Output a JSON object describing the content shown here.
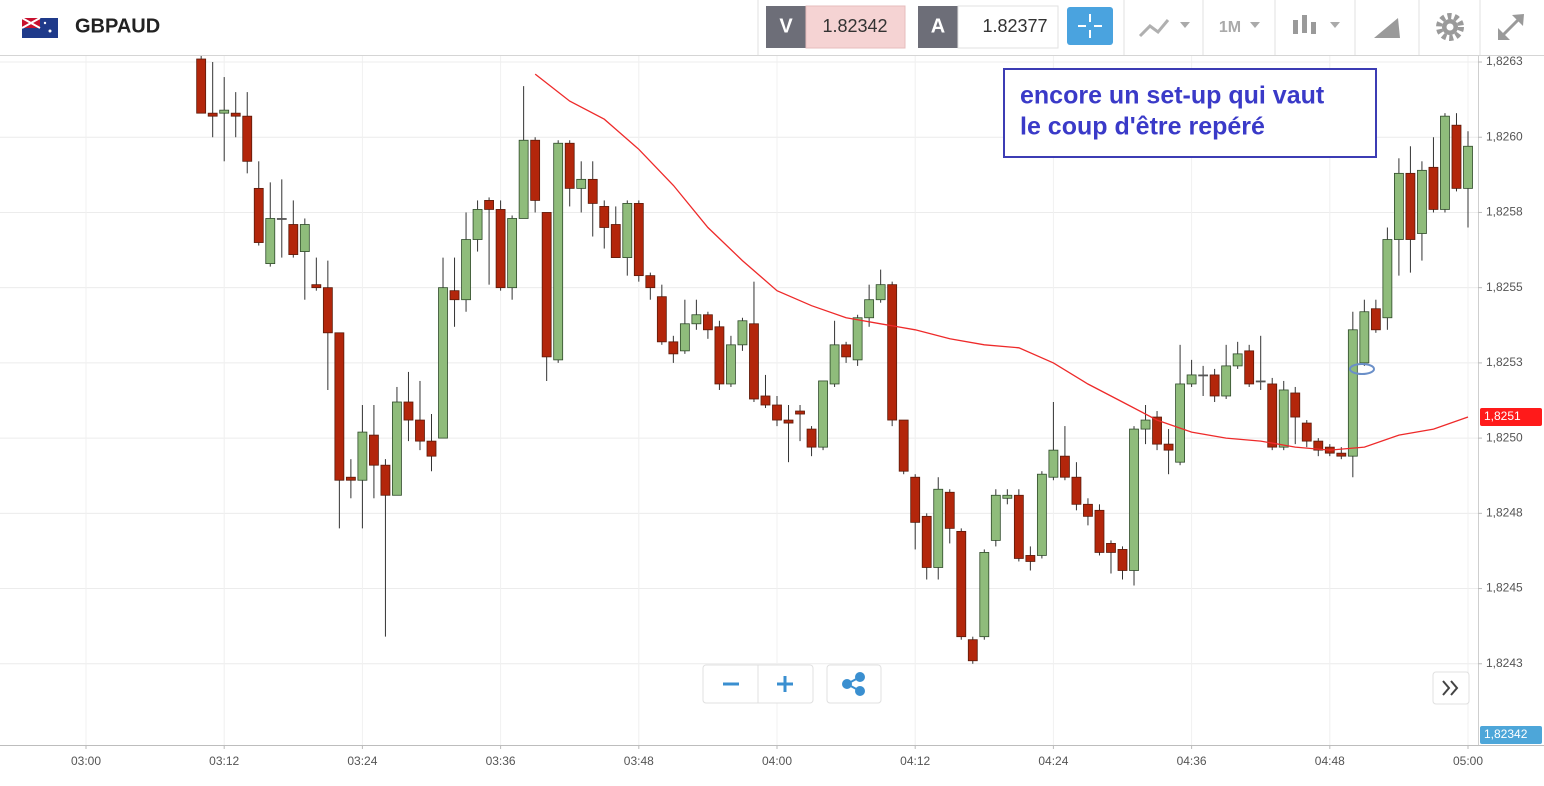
{
  "toolbar": {
    "symbol": "GBPAUD",
    "sell_label": "V",
    "sell_price": 1.82342,
    "buy_label": "A",
    "buy_price": 1.82377,
    "timeframe": "1M"
  },
  "chart_data": {
    "type": "candlestick",
    "annotation": [
      "encore un set-up qui vaut",
      "le coup d'être repéré"
    ],
    "x": [
      "03:10",
      "03:11",
      "03:12",
      "03:13",
      "03:14",
      "03:15",
      "03:16",
      "03:17",
      "03:18",
      "03:19",
      "03:20",
      "03:21",
      "03:22",
      "03:23",
      "03:24",
      "03:25",
      "03:26",
      "03:27",
      "03:28",
      "03:29",
      "03:30",
      "03:31",
      "03:32",
      "03:33",
      "03:34",
      "03:35",
      "03:36",
      "03:37",
      "03:38",
      "03:39",
      "03:40",
      "03:41",
      "03:42",
      "03:43",
      "03:44",
      "03:45",
      "03:46",
      "03:47",
      "03:48",
      "03:49",
      "03:50",
      "03:51",
      "03:52",
      "03:53",
      "03:54",
      "03:55",
      "03:56",
      "03:57",
      "03:58",
      "03:59",
      "04:00",
      "04:01",
      "04:02",
      "04:03",
      "04:04",
      "04:05",
      "04:06",
      "04:07",
      "04:08",
      "04:09",
      "04:10",
      "04:11",
      "04:12",
      "04:13",
      "04:14",
      "04:15",
      "04:16",
      "04:17",
      "04:18",
      "04:19",
      "04:20",
      "04:21",
      "04:22",
      "04:23",
      "04:24",
      "04:25",
      "04:26",
      "04:27",
      "04:28",
      "04:29",
      "04:30",
      "04:31",
      "04:32",
      "04:33",
      "04:34",
      "04:35",
      "04:36",
      "04:37",
      "04:38",
      "04:39",
      "04:40",
      "04:41",
      "04:42",
      "04:43",
      "04:44",
      "04:45",
      "04:46",
      "04:47",
      "04:48",
      "04:49",
      "04:50",
      "04:51",
      "04:52",
      "04:53",
      "04:54",
      "04:55",
      "04:56",
      "04:57",
      "04:58",
      "04:59",
      "05:00"
    ],
    "open": [
      1.82626,
      1.82608,
      1.82608,
      1.82608,
      1.82607,
      1.82583,
      1.82558,
      1.82573,
      1.82571,
      1.82562,
      1.82551,
      1.8255,
      1.82535,
      1.82487,
      1.82486,
      1.82501,
      1.82491,
      1.82481,
      1.82512,
      1.82506,
      1.82499,
      1.825,
      1.82549,
      1.82546,
      1.82566,
      1.82579,
      1.82576,
      1.8255,
      1.82573,
      1.82599,
      1.82575,
      1.82526,
      1.82598,
      1.82583,
      1.82586,
      1.82577,
      1.82571,
      1.8256,
      1.82578,
      1.82554,
      1.82547,
      1.82532,
      1.82529,
      1.82538,
      1.82541,
      1.82537,
      1.82518,
      1.82531,
      1.82538,
      1.82514,
      1.82511,
      1.82506,
      1.82509,
      1.82503,
      1.82497,
      1.82518,
      1.82531,
      1.82526,
      1.8254,
      1.82546,
      1.82551,
      1.82506,
      1.82487,
      1.82474,
      1.82457,
      1.82482,
      1.82469,
      1.82433,
      1.82434,
      1.82466,
      1.8248,
      1.82481,
      1.82461,
      1.82461,
      1.82487,
      1.82494,
      1.82487,
      1.82478,
      1.82476,
      1.82465,
      1.82463,
      1.82456,
      1.82503,
      1.82507,
      1.82498,
      1.82492,
      1.82518,
      1.82521,
      1.82521,
      1.82514,
      1.82524,
      1.82529,
      1.82519,
      1.82518,
      1.82497,
      1.82515,
      1.82505,
      1.82499,
      1.82497,
      1.82495,
      1.82494,
      1.82525,
      1.82543,
      1.8254,
      1.82566,
      1.82588,
      1.82568,
      1.8259,
      1.82576,
      1.82604,
      1.82583
    ],
    "high": [
      1.82628,
      1.82625,
      1.8262,
      1.82615,
      1.82615,
      1.82592,
      1.82585,
      1.82586,
      1.82579,
      1.82573,
      1.8256,
      1.82559,
      1.82535,
      1.82493,
      1.82511,
      1.82511,
      1.82493,
      1.82517,
      1.82522,
      1.82519,
      1.82508,
      1.8256,
      1.8256,
      1.82575,
      1.82579,
      1.8258,
      1.82579,
      1.82574,
      1.82617,
      1.826,
      1.82575,
      1.82599,
      1.82599,
      1.82592,
      1.82592,
      1.82579,
      1.82577,
      1.82579,
      1.82579,
      1.82555,
      1.82551,
      1.82534,
      1.82546,
      1.82546,
      1.82542,
      1.82539,
      1.82534,
      1.8254,
      1.82552,
      1.82521,
      1.82514,
      1.82511,
      1.82511,
      1.82504,
      1.82519,
      1.82539,
      1.82532,
      1.82541,
      1.82551,
      1.82556,
      1.82552,
      1.82506,
      1.82488,
      1.82475,
      1.82487,
      1.82483,
      1.8247,
      1.82434,
      1.82463,
      1.82483,
      1.82483,
      1.82483,
      1.82464,
      1.82489,
      1.82512,
      1.82504,
      1.82492,
      1.8248,
      1.82478,
      1.82466,
      1.82464,
      1.82504,
      1.82511,
      1.82509,
      1.82503,
      1.82531,
      1.82526,
      1.82524,
      1.82523,
      1.82531,
      1.82532,
      1.82531,
      1.82534,
      1.8252,
      1.82519,
      1.82517,
      1.82506,
      1.825,
      1.82498,
      1.82497,
      1.82542,
      1.82546,
      1.82546,
      1.8257,
      1.82593,
      1.82597,
      1.82592,
      1.826,
      1.82608,
      1.82608,
      1.82602
    ],
    "low": [
      1.82608,
      1.826,
      1.82592,
      1.826,
      1.82588,
      1.82564,
      1.82557,
      1.8256,
      1.8256,
      1.82546,
      1.82549,
      1.82516,
      1.8247,
      1.8248,
      1.8247,
      1.8248,
      1.82434,
      1.82481,
      1.82499,
      1.82496,
      1.82489,
      1.825,
      1.82537,
      1.82542,
      1.82562,
      1.82551,
      1.82549,
      1.82546,
      1.82573,
      1.82575,
      1.82519,
      1.82525,
      1.82577,
      1.82575,
      1.82567,
      1.82563,
      1.8256,
      1.82554,
      1.82552,
      1.82546,
      1.82531,
      1.82525,
      1.82528,
      1.82536,
      1.82533,
      1.82516,
      1.82517,
      1.82529,
      1.82512,
      1.8251,
      1.82504,
      1.82492,
      1.82499,
      1.82494,
      1.82496,
      1.82517,
      1.82525,
      1.82524,
      1.82537,
      1.82545,
      1.82504,
      1.82488,
      1.82463,
      1.82453,
      1.82453,
      1.82465,
      1.82433,
      1.82425,
      1.82433,
      1.82464,
      1.82478,
      1.82459,
      1.82456,
      1.8246,
      1.82486,
      1.82486,
      1.82476,
      1.82471,
      1.82461,
      1.82455,
      1.82453,
      1.82451,
      1.82498,
      1.82496,
      1.82488,
      1.82491,
      1.82517,
      1.82514,
      1.82512,
      1.82513,
      1.82523,
      1.82517,
      1.82516,
      1.82496,
      1.82496,
      1.82498,
      1.82497,
      1.82494,
      1.82494,
      1.82493,
      1.82487,
      1.82524,
      1.82535,
      1.82536,
      1.82554,
      1.82555,
      1.82559,
      1.82575,
      1.82575,
      1.82582,
      1.8257
    ],
    "close": [
      1.82608,
      1.82607,
      1.82609,
      1.82607,
      1.82592,
      1.82565,
      1.82573,
      1.82573,
      1.82561,
      1.82571,
      1.8255,
      1.82535,
      1.82486,
      1.82486,
      1.82502,
      1.82491,
      1.82481,
      1.82512,
      1.82506,
      1.82499,
      1.82494,
      1.8255,
      1.82546,
      1.82566,
      1.82576,
      1.82576,
      1.8255,
      1.82573,
      1.82599,
      1.82579,
      1.82527,
      1.82598,
      1.82583,
      1.82586,
      1.82578,
      1.8257,
      1.8256,
      1.82578,
      1.82554,
      1.8255,
      1.82532,
      1.82528,
      1.82538,
      1.82541,
      1.82536,
      1.82518,
      1.82531,
      1.82539,
      1.82513,
      1.82511,
      1.82506,
      1.82505,
      1.82508,
      1.82497,
      1.82519,
      1.82531,
      1.82527,
      1.8254,
      1.82546,
      1.82551,
      1.82506,
      1.82489,
      1.82472,
      1.82457,
      1.82483,
      1.8247,
      1.82434,
      1.82426,
      1.82462,
      1.82481,
      1.82481,
      1.8246,
      1.82459,
      1.82488,
      1.82496,
      1.82487,
      1.82478,
      1.82474,
      1.82462,
      1.82462,
      1.82456,
      1.82503,
      1.82506,
      1.82498,
      1.82496,
      1.82518,
      1.82521,
      1.82521,
      1.82514,
      1.82524,
      1.82528,
      1.82518,
      1.82519,
      1.82497,
      1.82516,
      1.82507,
      1.82499,
      1.82496,
      1.82495,
      1.82494,
      1.82536,
      1.82542,
      1.82536,
      1.82566,
      1.82588,
      1.82566,
      1.82589,
      1.82576,
      1.82607,
      1.82583,
      1.82597
    ],
    "up_color": "#8fbc7b",
    "down_color": "#b3260b",
    "doji_color": "#555555",
    "ma": {
      "color": "#ee2a2a",
      "x": [
        "03:39",
        "03:42",
        "03:45",
        "03:48",
        "03:51",
        "03:54",
        "03:57",
        "04:00",
        "04:03",
        "04:06",
        "04:09",
        "04:12",
        "04:15",
        "04:18",
        "04:21",
        "04:24",
        "04:27",
        "04:30",
        "04:33",
        "04:36",
        "04:39",
        "04:42",
        "04:45",
        "04:48",
        "04:51",
        "04:54",
        "04:57",
        "05:00"
      ],
      "values": [
        1.82621,
        1.82612,
        1.82606,
        1.82596,
        1.82584,
        1.8257,
        1.82559,
        1.82549,
        1.82544,
        1.8254,
        1.82538,
        1.82536,
        1.82533,
        1.82531,
        1.8253,
        1.82525,
        1.82518,
        1.82512,
        1.82506,
        1.82502,
        1.825,
        1.82499,
        1.82497,
        1.82496,
        1.82497,
        1.82501,
        1.82503,
        1.82507
      ]
    },
    "ylim": [
      1.82398,
      1.82627
    ],
    "yticks": [
      {
        "value": 1.82625,
        "label": "1,8263"
      },
      {
        "value": 1.826,
        "label": "1,8260"
      },
      {
        "value": 1.82575,
        "label": "1,8258"
      },
      {
        "value": 1.8255,
        "label": "1,8255"
      },
      {
        "value": 1.82525,
        "label": "1,8253"
      },
      {
        "value": 1.825,
        "label": "1,8250"
      },
      {
        "value": 1.82475,
        "label": "1,8248"
      },
      {
        "value": 1.8245,
        "label": "1,8245"
      },
      {
        "value": 1.82425,
        "label": "1,8243"
      }
    ],
    "xticks": [
      "03:00",
      "03:12",
      "03:24",
      "03:36",
      "03:48",
      "04:00",
      "04:12",
      "04:24",
      "04:36",
      "04:48",
      "05:00"
    ],
    "grid": true,
    "price_tags": [
      {
        "value": 1.82507,
        "label": "1,8251",
        "color": "#ff1a1a"
      },
      {
        "value": 1.82342,
        "label": "1,82342",
        "color": "#4da6d9"
      }
    ]
  }
}
